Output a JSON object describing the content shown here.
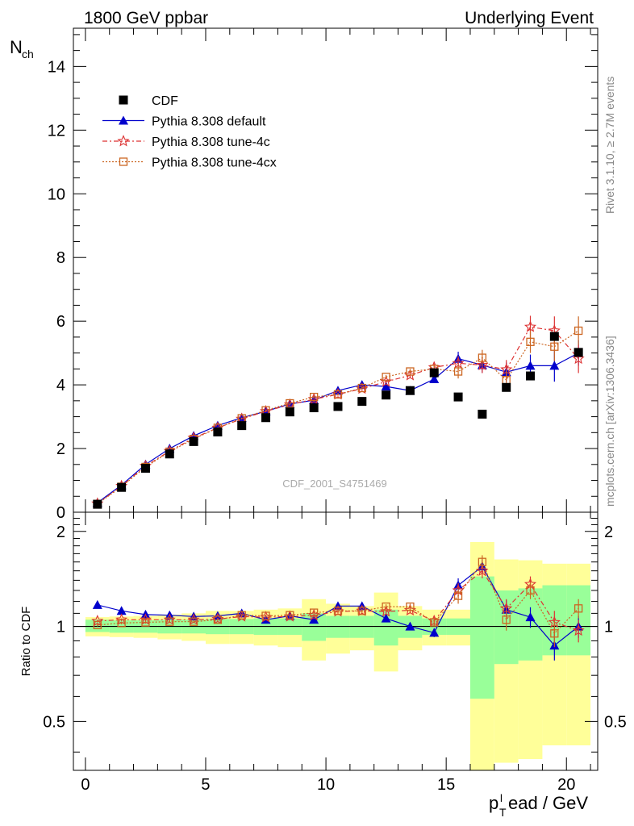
{
  "header": {
    "left": "1800 GeV ppbar",
    "right": "Underlying Event"
  },
  "side_text": {
    "rivet": "Rivet 3.1.10, ≥ 2.7M events",
    "mcplots": "mcplots.cern.ch [arXiv:1306.3436]"
  },
  "watermark": "CDF_2001_S4751469",
  "chart_data": [
    {
      "type": "scatter",
      "panel": "main",
      "ylabel_main": "N",
      "ylabel_sub": "ch",
      "xlim": [
        -0.5,
        21.3
      ],
      "ylim": [
        0,
        15.2
      ],
      "yticks": [
        0,
        2,
        4,
        6,
        8,
        10,
        12,
        14
      ],
      "ytick_labels": [
        "0",
        "2",
        "4",
        "6",
        "8",
        "10",
        "12",
        "14"
      ],
      "legend_position": "top-left",
      "series": [
        {
          "name": "CDF",
          "color": "#000000",
          "marker": "square-filled",
          "x": [
            0.5,
            1.5,
            2.5,
            3.5,
            4.5,
            5.5,
            6.5,
            7.5,
            8.5,
            9.5,
            10.5,
            11.5,
            12.5,
            13.5,
            14.5,
            15.5,
            16.5,
            17.5,
            18.5,
            19.5,
            20.5
          ],
          "y": [
            0.25,
            0.78,
            1.38,
            1.83,
            2.22,
            2.52,
            2.72,
            2.97,
            3.15,
            3.28,
            3.32,
            3.48,
            3.68,
            3.82,
            4.38,
            3.62,
            3.08,
            3.92,
            4.28,
            5.52,
            5.02
          ]
        },
        {
          "name": "Pythia 8.308 default",
          "color": "#0000cc",
          "marker": "triangle",
          "line": "solid",
          "x": [
            0.5,
            1.5,
            2.5,
            3.5,
            4.5,
            5.5,
            6.5,
            7.5,
            8.5,
            9.5,
            10.5,
            11.5,
            12.5,
            13.5,
            14.5,
            15.5,
            16.5,
            17.5,
            18.5,
            19.5,
            20.5
          ],
          "y": [
            0.3,
            0.85,
            1.5,
            2.0,
            2.4,
            2.72,
            2.97,
            3.17,
            3.4,
            3.52,
            3.82,
            4.0,
            3.95,
            3.82,
            4.18,
            4.82,
            4.62,
            4.4,
            4.6,
            4.6,
            5.0
          ],
          "err": [
            0.02,
            0.02,
            0.02,
            0.02,
            0.02,
            0.02,
            0.02,
            0.03,
            0.03,
            0.04,
            0.04,
            0.05,
            0.06,
            0.08,
            0.12,
            0.22,
            0.25,
            0.3,
            0.35,
            0.5,
            0.4
          ]
        },
        {
          "name": "Pythia 8.308 tune-4c",
          "color": "#dd3333",
          "marker": "star",
          "line": "dashdot",
          "x": [
            0.5,
            1.5,
            2.5,
            3.5,
            4.5,
            5.5,
            6.5,
            7.5,
            8.5,
            9.5,
            10.5,
            11.5,
            12.5,
            13.5,
            14.5,
            15.5,
            16.5,
            17.5,
            18.5,
            19.5,
            20.5
          ],
          "y": [
            0.27,
            0.82,
            1.45,
            1.92,
            2.33,
            2.65,
            2.93,
            3.17,
            3.38,
            3.55,
            3.7,
            3.88,
            4.1,
            4.3,
            4.55,
            4.68,
            4.62,
            4.48,
            5.82,
            5.7,
            4.82
          ],
          "err": [
            0.02,
            0.02,
            0.02,
            0.02,
            0.02,
            0.02,
            0.02,
            0.03,
            0.03,
            0.04,
            0.04,
            0.05,
            0.06,
            0.08,
            0.12,
            0.22,
            0.25,
            0.3,
            0.35,
            0.45,
            0.45
          ]
        },
        {
          "name": "Pythia 8.308 tune-4cx",
          "color": "#cc6622",
          "marker": "square-open",
          "line": "dotted",
          "x": [
            0.5,
            1.5,
            2.5,
            3.5,
            4.5,
            5.5,
            6.5,
            7.5,
            8.5,
            9.5,
            10.5,
            11.5,
            12.5,
            13.5,
            14.5,
            15.5,
            16.5,
            17.5,
            18.5,
            19.5,
            20.5
          ],
          "y": [
            0.26,
            0.8,
            1.42,
            1.9,
            2.3,
            2.65,
            2.95,
            3.2,
            3.42,
            3.62,
            3.7,
            3.9,
            4.25,
            4.42,
            4.5,
            4.42,
            4.85,
            4.15,
            5.35,
            5.2,
            5.7
          ],
          "err": [
            0.02,
            0.02,
            0.02,
            0.02,
            0.02,
            0.02,
            0.02,
            0.03,
            0.03,
            0.04,
            0.04,
            0.05,
            0.06,
            0.08,
            0.12,
            0.22,
            0.25,
            0.3,
            0.35,
            0.45,
            0.45
          ]
        }
      ]
    },
    {
      "type": "scatter",
      "panel": "ratio",
      "ylabel": "Ratio to CDF",
      "xlabel_main": "p",
      "xlabel_sub": "T",
      "xlabel_sup": "l",
      "xlabel_rest": "ead / GeV",
      "xlim": [
        -0.5,
        21.3
      ],
      "ylim": [
        0.35,
        2.3
      ],
      "yticks": [
        0.5,
        1,
        2
      ],
      "ytick_labels": [
        "0.5",
        "1",
        "2"
      ],
      "xticks": [
        0,
        5,
        10,
        15,
        20
      ],
      "xtick_labels": [
        "0",
        "5",
        "10",
        "15",
        "20"
      ],
      "bin_edges": [
        0,
        1,
        2,
        3,
        4,
        5,
        6,
        7,
        8,
        9,
        10,
        11,
        12,
        13,
        14,
        15,
        16,
        17,
        18,
        19,
        20,
        21
      ],
      "band_inner": {
        "color": "#99ff99",
        "lo": [
          0.96,
          0.955,
          0.955,
          0.95,
          0.95,
          0.945,
          0.945,
          0.94,
          0.94,
          0.9,
          0.92,
          0.92,
          0.87,
          0.92,
          0.94,
          0.94,
          0.59,
          0.76,
          0.78,
          0.81,
          0.81
        ],
        "hi": [
          1.05,
          1.045,
          1.045,
          1.05,
          1.05,
          1.055,
          1.055,
          1.06,
          1.06,
          1.1,
          1.08,
          1.08,
          1.13,
          1.08,
          1.06,
          1.06,
          1.44,
          1.3,
          1.32,
          1.35,
          1.35
        ]
      },
      "band_outer": {
        "color": "#ffff99",
        "lo": [
          0.93,
          0.925,
          0.92,
          0.91,
          0.9,
          0.88,
          0.88,
          0.87,
          0.86,
          0.78,
          0.82,
          0.84,
          0.72,
          0.84,
          0.87,
          0.87,
          0.35,
          0.37,
          0.38,
          0.42,
          0.42
        ],
        "hi": [
          1.07,
          1.075,
          1.08,
          1.09,
          1.1,
          1.12,
          1.12,
          1.13,
          1.14,
          1.22,
          1.18,
          1.16,
          1.28,
          1.16,
          1.13,
          1.13,
          1.85,
          1.63,
          1.62,
          1.58,
          1.58
        ]
      },
      "reference_line": 1,
      "series": [
        {
          "name": "Pythia 8.308 default",
          "color": "#0000cc",
          "marker": "triangle",
          "line": "solid",
          "x": [
            0.5,
            1.5,
            2.5,
            3.5,
            4.5,
            5.5,
            6.5,
            7.5,
            8.5,
            9.5,
            10.5,
            11.5,
            12.5,
            13.5,
            14.5,
            15.5,
            16.5,
            17.5,
            18.5,
            19.5,
            20.5
          ],
          "y": [
            1.17,
            1.12,
            1.09,
            1.085,
            1.075,
            1.08,
            1.1,
            1.05,
            1.08,
            1.05,
            1.16,
            1.16,
            1.06,
            1.0,
            0.955,
            1.35,
            1.55,
            1.13,
            1.07,
            0.87,
            1.0
          ],
          "err": [
            0.01,
            0.01,
            0.01,
            0.01,
            0.01,
            0.01,
            0.01,
            0.01,
            0.01,
            0.015,
            0.015,
            0.015,
            0.02,
            0.025,
            0.03,
            0.07,
            0.08,
            0.08,
            0.08,
            0.09,
            0.08
          ]
        },
        {
          "name": "Pythia 8.308 tune-4c",
          "color": "#dd3333",
          "marker": "star",
          "line": "dashdot",
          "x": [
            0.5,
            1.5,
            2.5,
            3.5,
            4.5,
            5.5,
            6.5,
            7.5,
            8.5,
            9.5,
            10.5,
            11.5,
            12.5,
            13.5,
            14.5,
            15.5,
            16.5,
            17.5,
            18.5,
            19.5,
            20.5
          ],
          "y": [
            1.04,
            1.05,
            1.05,
            1.05,
            1.05,
            1.055,
            1.075,
            1.07,
            1.075,
            1.085,
            1.115,
            1.12,
            1.115,
            1.125,
            1.04,
            1.3,
            1.5,
            1.14,
            1.36,
            1.03,
            0.97
          ],
          "err": [
            0.01,
            0.01,
            0.01,
            0.01,
            0.01,
            0.01,
            0.01,
            0.01,
            0.01,
            0.015,
            0.015,
            0.015,
            0.02,
            0.025,
            0.03,
            0.07,
            0.08,
            0.08,
            0.08,
            0.09,
            0.08
          ]
        },
        {
          "name": "Pythia 8.308 tune-4cx",
          "color": "#cc6622",
          "marker": "square-open",
          "line": "dotted",
          "x": [
            0.5,
            1.5,
            2.5,
            3.5,
            4.5,
            5.5,
            6.5,
            7.5,
            8.5,
            9.5,
            10.5,
            11.5,
            12.5,
            13.5,
            14.5,
            15.5,
            16.5,
            17.5,
            18.5,
            19.5,
            20.5
          ],
          "y": [
            1.01,
            1.025,
            1.03,
            1.035,
            1.035,
            1.05,
            1.085,
            1.08,
            1.085,
            1.105,
            1.12,
            1.12,
            1.155,
            1.155,
            1.03,
            1.25,
            1.6,
            1.05,
            1.3,
            0.95,
            1.14
          ],
          "err": [
            0.01,
            0.01,
            0.01,
            0.01,
            0.01,
            0.01,
            0.01,
            0.01,
            0.01,
            0.015,
            0.015,
            0.015,
            0.02,
            0.025,
            0.03,
            0.07,
            0.08,
            0.08,
            0.08,
            0.09,
            0.08
          ]
        }
      ]
    }
  ]
}
